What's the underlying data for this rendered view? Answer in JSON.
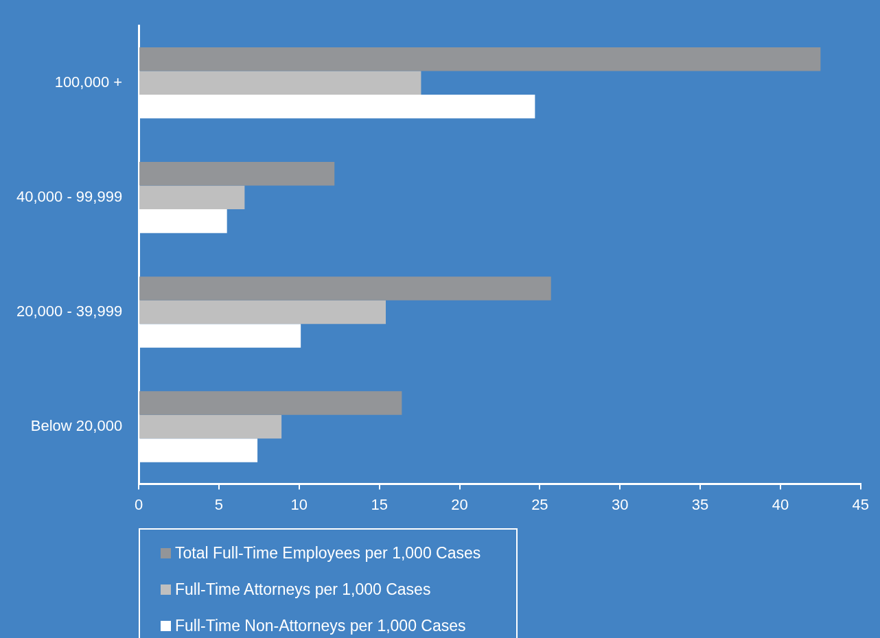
{
  "chart_data": {
    "type": "bar",
    "orientation": "horizontal",
    "categories": [
      "100,000 +",
      "40,000 - 99,999",
      "20,000 - 39,999",
      "Below 20,000"
    ],
    "series": [
      {
        "name": "Total Full-Time Employees per 1,000 Cases",
        "color": "#939598",
        "values": [
          42.5,
          12.2,
          25.7,
          16.4
        ]
      },
      {
        "name": "Full-Time Attorneys per 1,000 Cases",
        "color": "#bfbfbf",
        "values": [
          17.6,
          6.6,
          15.4,
          8.9
        ]
      },
      {
        "name": "Full-Time Non-Attorneys per 1,000 Cases",
        "color": "#ffffff",
        "values": [
          24.7,
          5.5,
          10.1,
          7.4
        ]
      }
    ],
    "xlim": [
      0,
      45
    ],
    "xticks": [
      0,
      5,
      10,
      15,
      20,
      25,
      30,
      35,
      40,
      45
    ],
    "grid": false,
    "legend": "bottom"
  }
}
